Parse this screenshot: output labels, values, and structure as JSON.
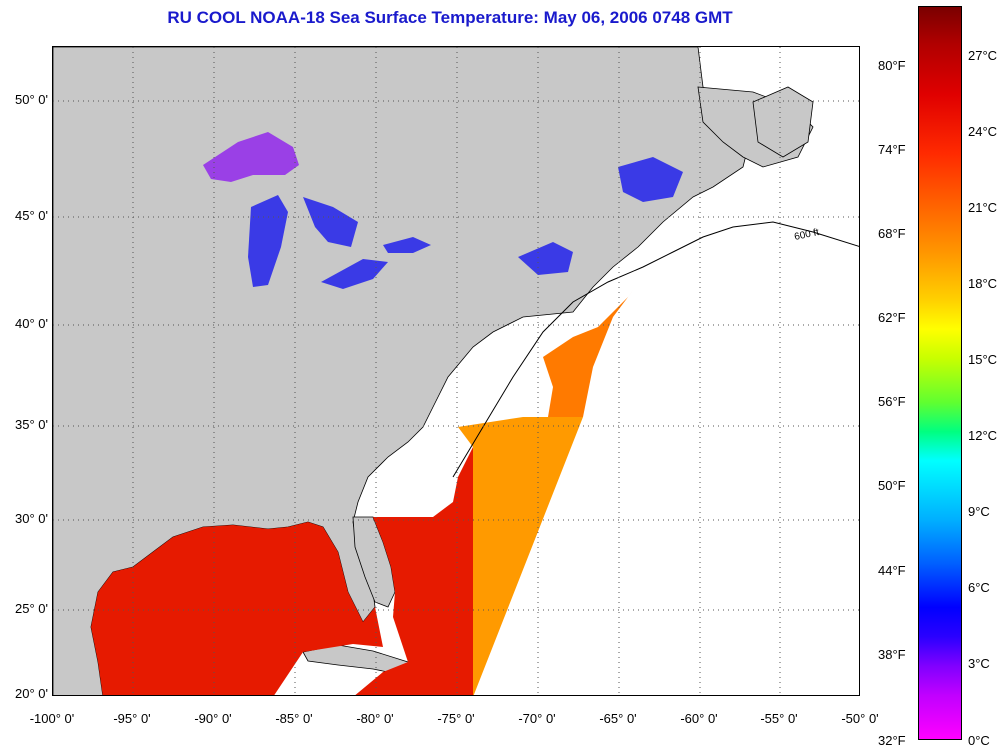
{
  "title": "RU COOL  NOAA-18  Sea Surface Temperature:  May 06, 2006 0748 GMT",
  "map": {
    "lat_labels": [
      "50° 0'",
      "45° 0'",
      "40° 0'",
      "35° 0'",
      "30° 0'",
      "25° 0'",
      "20° 0'"
    ],
    "lon_labels": [
      "-100° 0'",
      "-95° 0'",
      "-90° 0'",
      "-85° 0'",
      "-80° 0'",
      "-75° 0'",
      "-70° 0'",
      "-65° 0'",
      "-60° 0'",
      "-55° 0'",
      "-50° 0'"
    ],
    "contour_label": "600 ft",
    "colors": {
      "land": "#c8c8c8",
      "ocean_no_data": "#ffffff",
      "gulf_warm": "#e61a00",
      "gulf_stream": "#ff9a00",
      "lakes": "#3a3ae6",
      "lake_superior": "#9a40e6",
      "coastline": "#000000"
    }
  },
  "colorbar": {
    "fahrenheit_labels": [
      "80°F",
      "74°F",
      "68°F",
      "62°F",
      "56°F",
      "50°F",
      "44°F",
      "38°F",
      "32°F"
    ],
    "celsius_labels": [
      "27°C",
      "24°C",
      "21°C",
      "18°C",
      "15°C",
      "12°C",
      "9°C",
      "6°C",
      "3°C",
      "0°C"
    ]
  }
}
